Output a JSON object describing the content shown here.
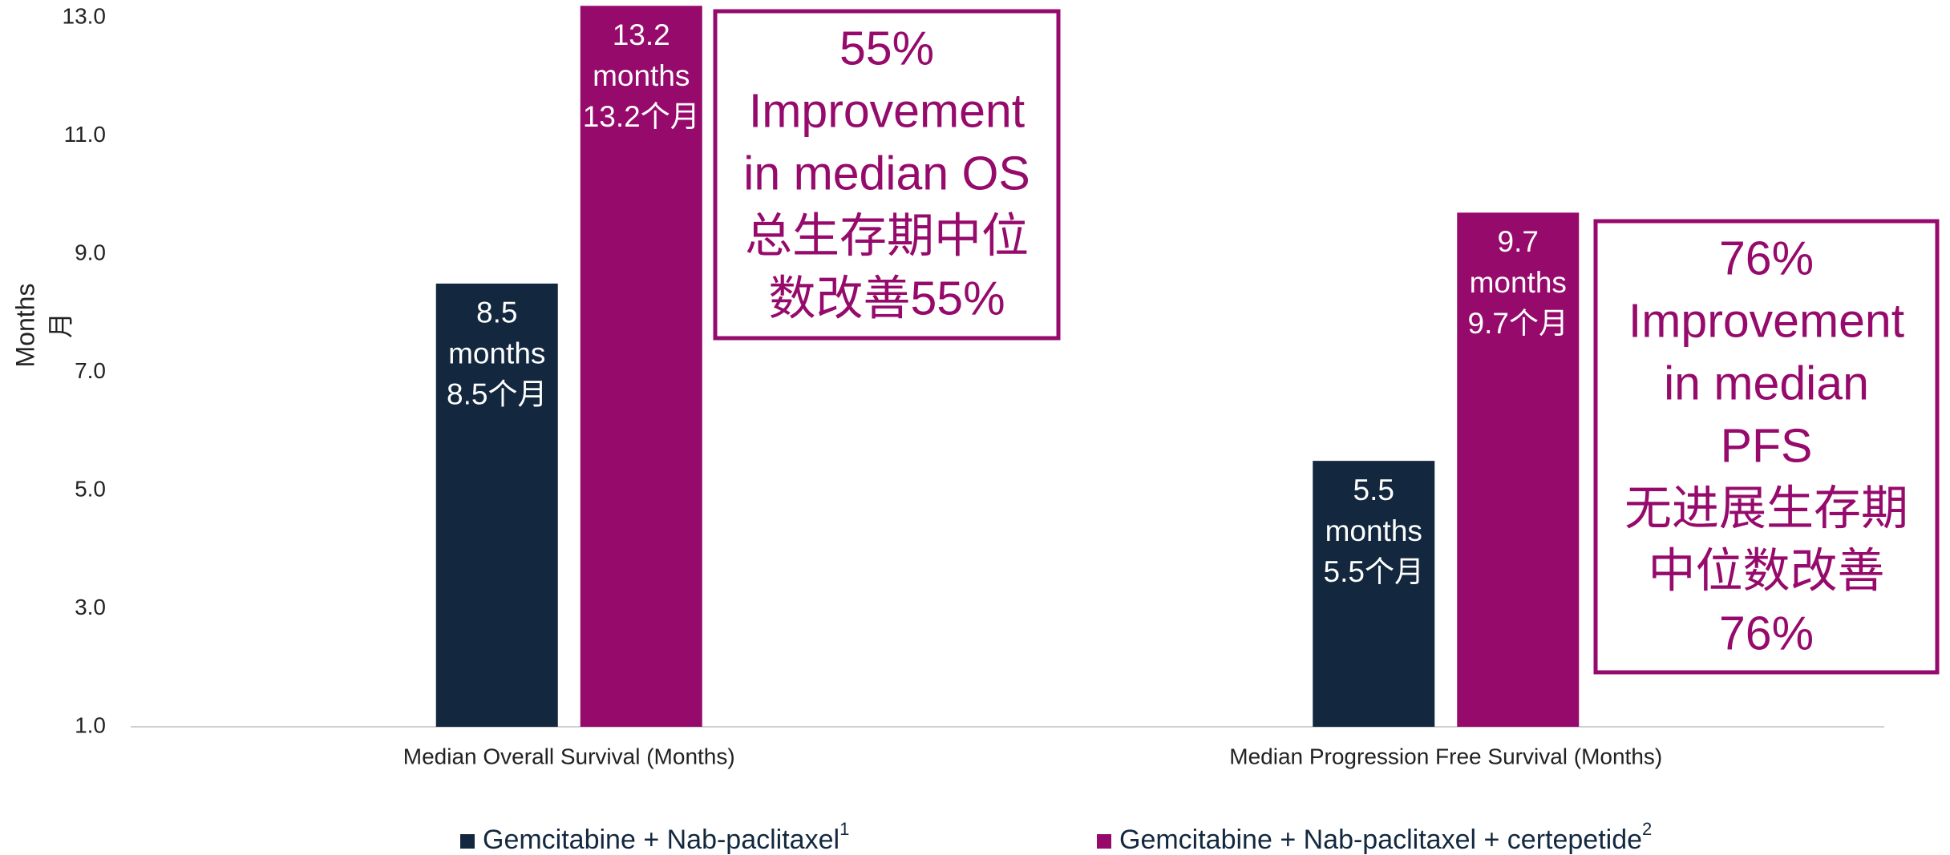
{
  "chart_data": {
    "type": "bar",
    "ylabel": [
      "Months",
      "月"
    ],
    "categories": [
      "Median Overall Survival (Months)",
      "Median Progression Free Survival (Months)"
    ],
    "series": [
      {
        "name": "Gemcitabine + Nab-paclitaxel",
        "name_sup": "1",
        "color": "#13283f",
        "values": [
          8.5,
          5.5
        ],
        "value_labels": [
          [
            "8.5",
            "months",
            "8.5个月"
          ],
          [
            "5.5",
            "months",
            "5.5个月"
          ]
        ]
      },
      {
        "name": "Gemcitabine + Nab-paclitaxel + certepetide",
        "name_sup": "2",
        "color": "#960a6c",
        "values": [
          13.2,
          9.7
        ],
        "value_labels": [
          [
            "13.2",
            "months",
            "13.2个月"
          ],
          [
            "9.7",
            "months",
            "9.7个月"
          ]
        ]
      }
    ],
    "annotations": [
      {
        "lines": [
          "55%",
          "Improvement",
          "in median OS",
          "总生存期中位",
          "数改善55%"
        ]
      },
      {
        "lines": [
          "76%",
          "Improvement",
          "in median",
          "PFS",
          "无进展生存期",
          "中位数改善",
          "76%"
        ]
      }
    ],
    "ylim": [
      1,
      13
    ],
    "yticks": [
      {
        "value": 1,
        "label": "1.0"
      },
      {
        "value": 3,
        "label": "3.0"
      },
      {
        "value": 5,
        "label": "5.0"
      },
      {
        "value": 7,
        "label": "7.0"
      },
      {
        "value": 9,
        "label": "9.0"
      },
      {
        "value": 11,
        "label": "11.0"
      },
      {
        "value": 13,
        "label": "13.0"
      }
    ],
    "grid": false
  }
}
